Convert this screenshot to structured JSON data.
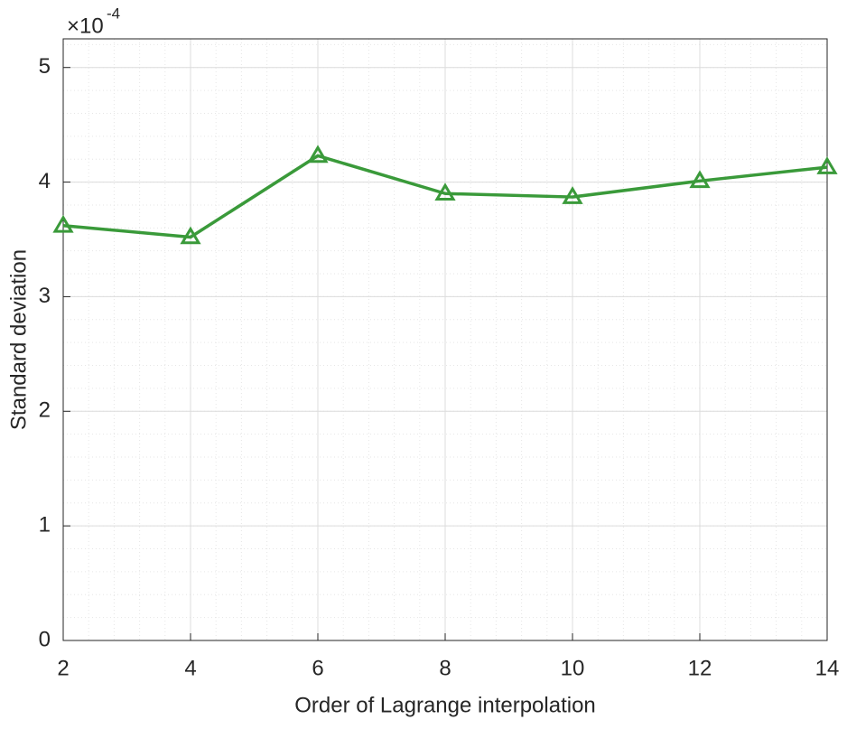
{
  "chart_data": {
    "type": "line",
    "x_label": "Order of Lagrange interpolation",
    "y_label": "Standard deviation",
    "y_multiplier": {
      "base": "×10",
      "exponent": "-4"
    },
    "x": [
      2,
      4,
      6,
      8,
      10,
      12,
      14
    ],
    "series": [
      {
        "color": "#3a9a3a",
        "marker": "triangle",
        "values": [
          3.62,
          3.52,
          4.23,
          3.9,
          3.87,
          4.01,
          4.13
        ]
      }
    ],
    "xlim": [
      2,
      14
    ],
    "xticks": [
      2,
      4,
      6,
      8,
      10,
      12,
      14
    ],
    "ylim": [
      0,
      5.25
    ],
    "yticks": [
      0,
      1,
      2,
      3,
      4,
      5
    ],
    "grid": true,
    "minor_grid": true
  }
}
